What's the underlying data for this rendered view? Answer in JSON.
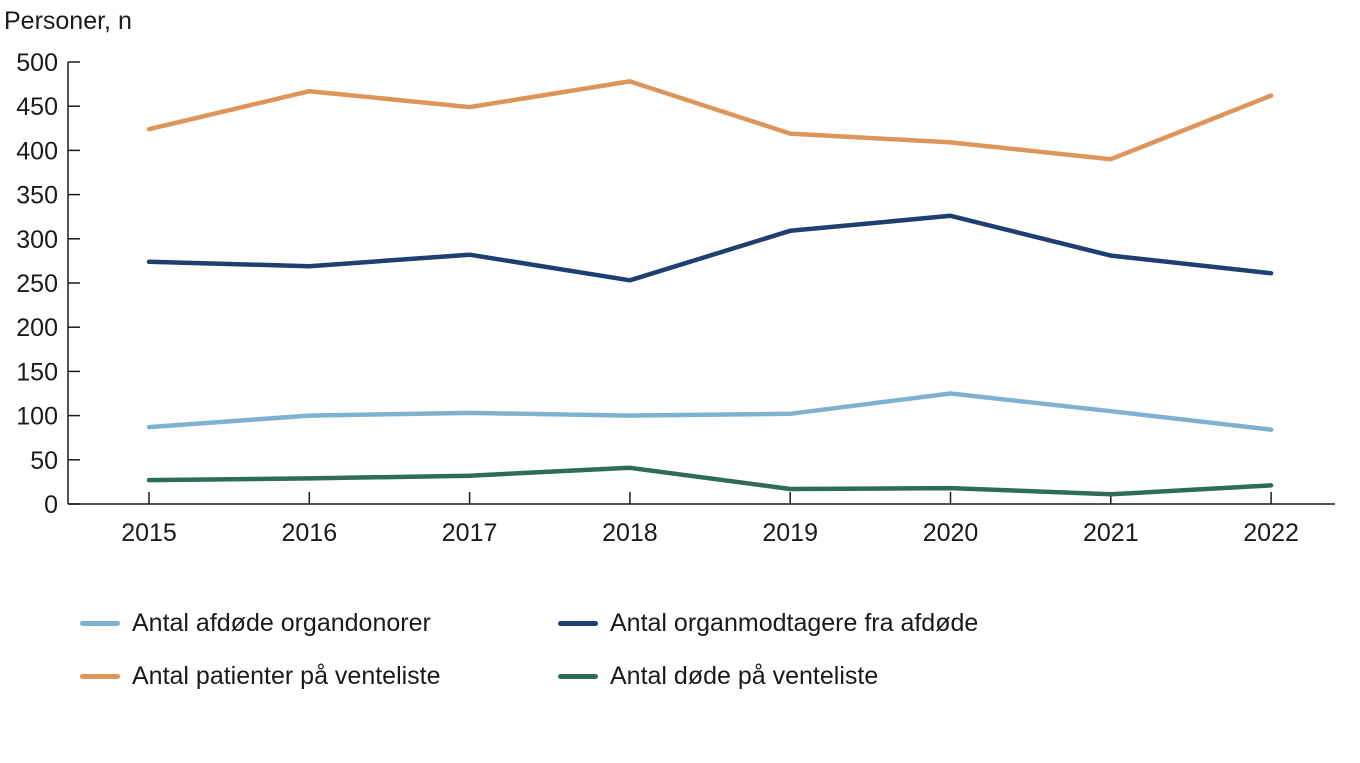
{
  "chart_data": {
    "type": "line",
    "title": "",
    "ylabel": "Personer, n",
    "xlabel": "",
    "ylim": [
      0,
      500
    ],
    "yticks": [
      "0",
      "50",
      "100",
      "150",
      "200",
      "250",
      "300",
      "350",
      "400",
      "450",
      "500"
    ],
    "categories": [
      "2015",
      "2016",
      "2017",
      "2018",
      "2019",
      "2020",
      "2021",
      "2022"
    ],
    "grid": false,
    "legend_position": "bottom",
    "series": [
      {
        "name": "Antal afdøde organdonorer",
        "color": "#7fb2d1",
        "values": [
          87,
          100,
          103,
          100,
          102,
          125,
          105,
          84
        ]
      },
      {
        "name": "Antal organmodtagere fra afdøde",
        "color": "#1f3f6e",
        "values": [
          274,
          269,
          282,
          253,
          309,
          326,
          281,
          261
        ]
      },
      {
        "name": "Antal patienter på venteliste",
        "color": "#de955a",
        "values": [
          424,
          467,
          449,
          478,
          419,
          409,
          390,
          462
        ]
      },
      {
        "name": "Antal døde på venteliste",
        "color": "#2f6b59",
        "values": [
          27,
          29,
          32,
          41,
          17,
          18,
          11,
          21
        ]
      }
    ]
  }
}
